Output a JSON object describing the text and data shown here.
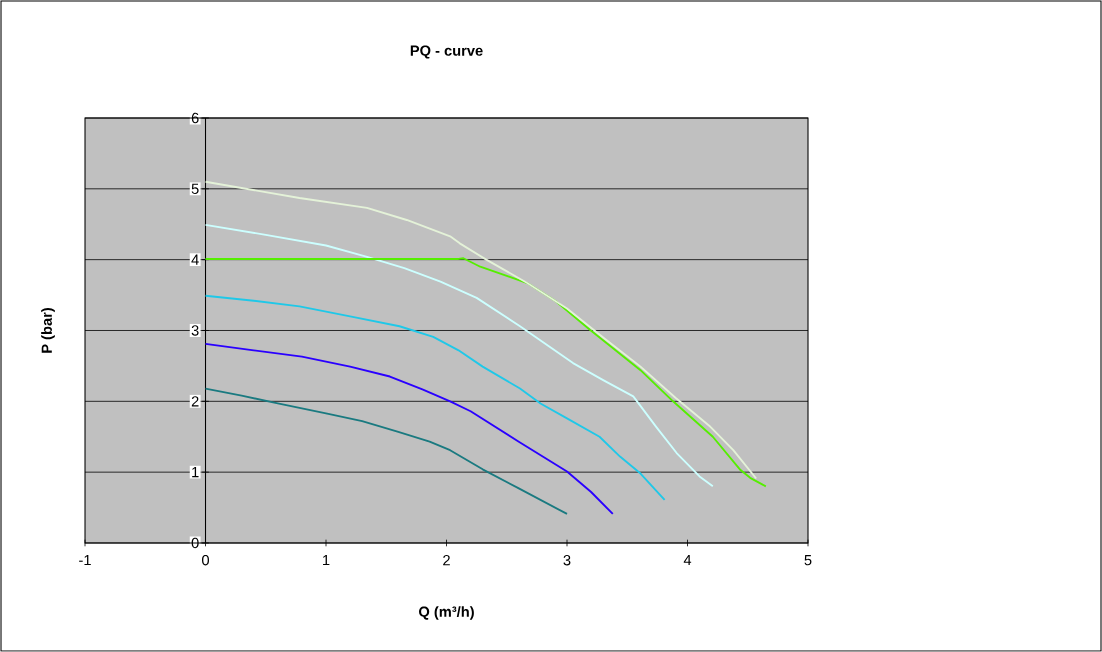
{
  "chart_data": {
    "type": "line",
    "title": "PQ - curve",
    "xlabel": "Q (m³/h)",
    "ylabel": "P (bar)",
    "xlim": [
      -1,
      5
    ],
    "ylim": [
      0,
      6
    ],
    "xticks": [
      -1,
      0,
      1,
      2,
      3,
      4,
      5
    ],
    "yticks": [
      0,
      1,
      2,
      3,
      4,
      5,
      6
    ],
    "grid": "y",
    "series": [
      {
        "color": "#1a7a80",
        "x": [
          0,
          0.3,
          0.6,
          1,
          1.3,
          1.6,
          1.86,
          2.03,
          2.3,
          2.6,
          3
        ],
        "values": [
          2.18,
          2.08,
          1.97,
          1.83,
          1.72,
          1.57,
          1.43,
          1.31,
          1.04,
          0.77,
          0.41
        ]
      },
      {
        "color": "#2a00ff",
        "x": [
          0,
          0.4,
          0.8,
          1.2,
          1.53,
          1.8,
          2.03,
          2.2,
          2.6,
          3.0,
          3.2,
          3.38
        ],
        "values": [
          2.81,
          2.72,
          2.63,
          2.49,
          2.35,
          2.17,
          2.0,
          1.86,
          1.43,
          1.01,
          0.72,
          0.41
        ]
      },
      {
        "color": "#1fc8e8",
        "x": [
          0,
          0.4,
          0.78,
          1.2,
          1.61,
          1.89,
          2.1,
          2.3,
          2.61,
          2.78,
          3.0,
          3.27,
          3.44,
          3.61,
          3.81
        ],
        "values": [
          3.49,
          3.42,
          3.34,
          3.2,
          3.06,
          2.91,
          2.72,
          2.49,
          2.18,
          1.97,
          1.76,
          1.5,
          1.22,
          0.98,
          0.61
        ]
      },
      {
        "color": "#ccffff",
        "x": [
          0,
          0.5,
          1.0,
          1.34,
          1.65,
          1.95,
          2.25,
          2.61,
          3.05,
          3.3,
          3.55,
          3.74,
          3.91,
          4.1,
          4.21
        ],
        "values": [
          4.49,
          4.35,
          4.2,
          4.04,
          3.88,
          3.69,
          3.46,
          3.06,
          2.54,
          2.3,
          2.07,
          1.64,
          1.27,
          0.94,
          0.8
        ]
      },
      {
        "color": "#55ee00",
        "x": [
          0,
          1,
          2.1,
          2.14,
          2.28,
          2.67,
          2.91,
          3.19,
          3.61,
          3.88,
          4.21,
          4.44,
          4.52,
          4.65
        ],
        "values": [
          4.01,
          4.01,
          4.01,
          4.02,
          3.9,
          3.67,
          3.41,
          3.01,
          2.44,
          2.0,
          1.5,
          1.03,
          0.92,
          0.8
        ]
      },
      {
        "color": "#e4f2d8",
        "x": [
          0,
          0.78,
          1.34,
          1.67,
          2.03,
          2.11,
          2.33,
          2.67,
          3.0,
          3.3,
          3.61,
          3.9,
          4.19,
          4.38,
          4.57
        ],
        "values": [
          5.1,
          4.87,
          4.73,
          4.56,
          4.33,
          4.23,
          4.0,
          3.67,
          3.31,
          2.9,
          2.49,
          2.05,
          1.64,
          1.31,
          0.91
        ]
      }
    ]
  }
}
